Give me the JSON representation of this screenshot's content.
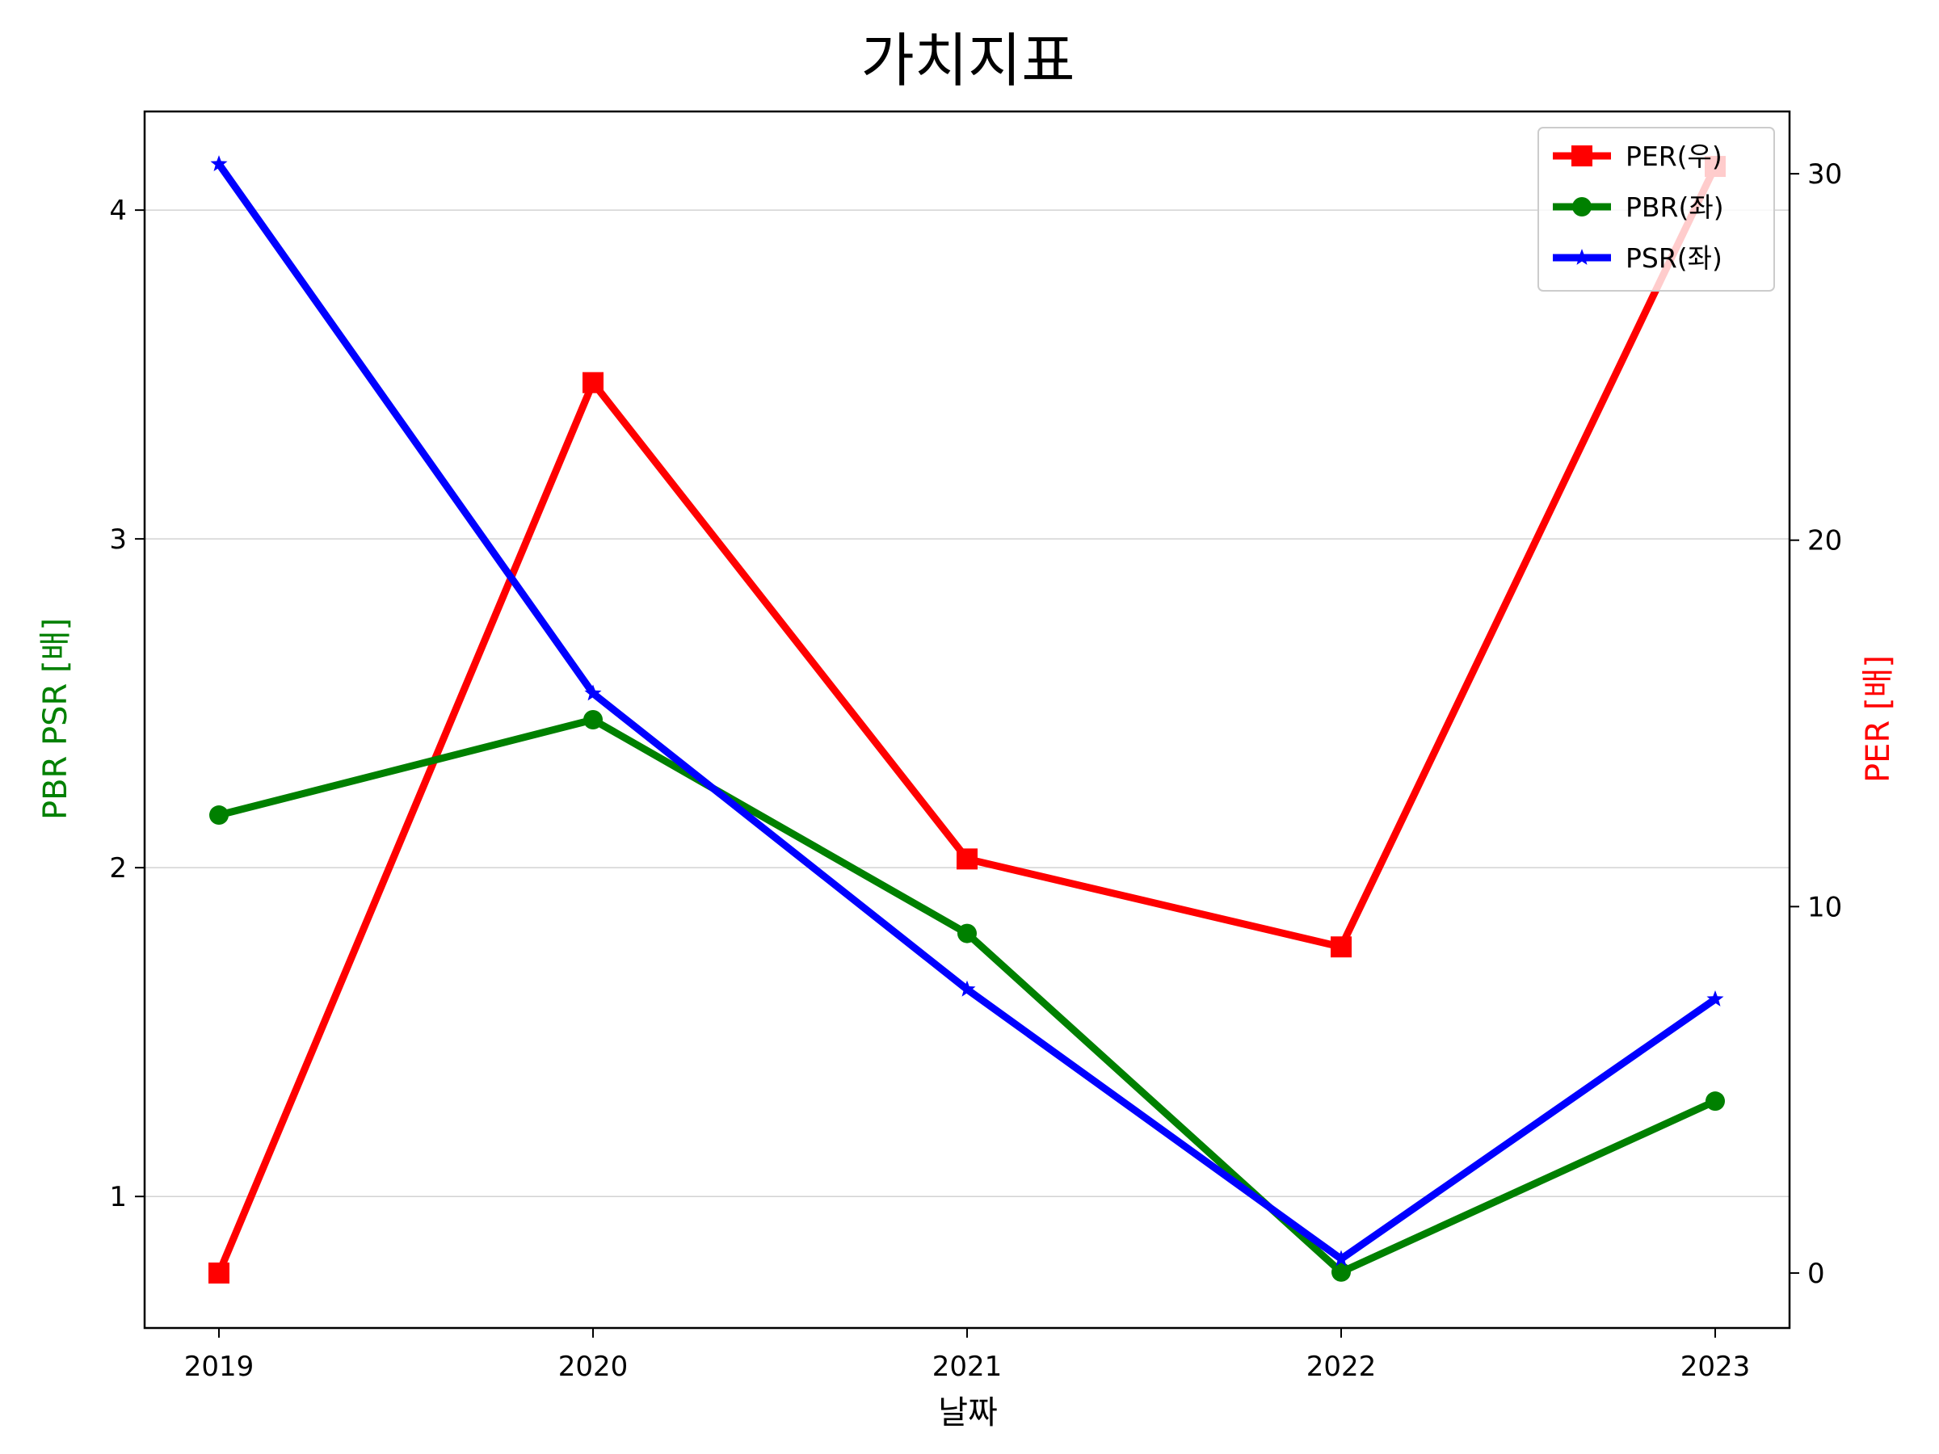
{
  "chart_data": {
    "type": "line",
    "title": "가치지표",
    "xlabel": "날짜",
    "ylabel_left": "PBR PSR [배]",
    "ylabel_right": "PER [배]",
    "categories": [
      "2019",
      "2020",
      "2021",
      "2022",
      "2023"
    ],
    "ylim_left": [
      0.6,
      4.3
    ],
    "ylim_right": [
      -1.5,
      31.7
    ],
    "yticks_left": [
      1,
      2,
      3,
      4
    ],
    "yticks_right": [
      0,
      10,
      20,
      30
    ],
    "grid": "horizontal (left axis)",
    "legend_position": "top-right",
    "colors": {
      "left_axis_label": "#008000",
      "right_axis_label": "#ff0000"
    },
    "series": [
      {
        "name": "PER(우)",
        "axis": "right",
        "color": "#ff0000",
        "marker": "square",
        "values": [
          0.0,
          24.3,
          11.3,
          8.9,
          30.2
        ]
      },
      {
        "name": "PBR(좌)",
        "axis": "left",
        "color": "#008000",
        "marker": "circle",
        "values": [
          2.16,
          2.45,
          1.8,
          0.77,
          1.29
        ]
      },
      {
        "name": "PSR(좌)",
        "axis": "left",
        "color": "#0000ff",
        "marker": "star",
        "values": [
          4.14,
          2.53,
          1.63,
          0.81,
          1.6
        ]
      }
    ]
  }
}
